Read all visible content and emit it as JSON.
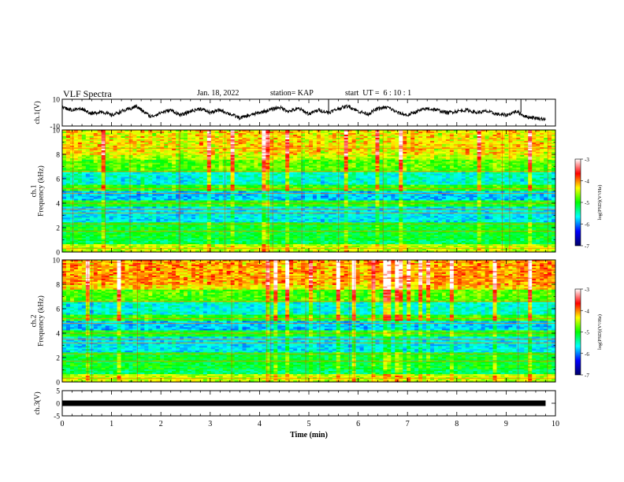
{
  "header": {
    "title": "VLF Spectra",
    "date": "Jan. 18, 2022",
    "station": "station= KAP",
    "start_ut": "start  UT =  6 : 10 : 1"
  },
  "colorbar": {
    "label": "log(PSD)(V²/Hz)",
    "ticks": [
      "-3",
      "-4",
      "-5",
      "-6",
      "-7"
    ],
    "stops": [
      "#ffffff",
      "#ff0000",
      "#ffff00",
      "#00ff00",
      "#00ffff",
      "#0000ff",
      "#000066"
    ]
  },
  "chart_data": [
    {
      "type": "line",
      "ylabel": "ch.1(V)",
      "ylim": [
        -10,
        10
      ],
      "yticks": [
        "10",
        "-10"
      ],
      "xlim": [
        0,
        10
      ],
      "description_series": "waveform",
      "x": [
        0,
        0.2,
        0.4,
        0.6,
        0.8,
        1.0,
        1.2,
        1.4,
        1.5,
        1.6,
        1.8,
        2.0,
        2.2,
        2.4,
        2.6,
        2.8,
        3.0,
        3.2,
        3.4,
        3.6,
        3.8,
        4.0,
        4.2,
        4.4,
        4.6,
        4.8,
        5.0,
        5.2,
        5.4,
        5.6,
        5.8,
        6.0,
        6.2,
        6.4,
        6.6,
        6.8,
        7.0,
        7.2,
        7.4,
        7.6,
        7.8,
        8.0,
        8.2,
        8.4,
        8.6,
        8.8,
        9.0,
        9.2,
        9.4,
        9.6,
        9.8
      ],
      "y": [
        4,
        2,
        3,
        -1,
        1,
        -2,
        1,
        3,
        5,
        2,
        -3,
        0,
        2,
        -2,
        1,
        3,
        0,
        2,
        -1,
        -4,
        -2,
        0,
        2,
        4,
        1,
        3,
        -1,
        2,
        0,
        3,
        5,
        1,
        -1,
        3,
        4,
        0,
        -2,
        1,
        3,
        2,
        0,
        1,
        2,
        0,
        1,
        -1,
        -2,
        1,
        -3,
        -4,
        -5
      ]
    },
    {
      "type": "heatmap",
      "ylabel": "ch.1\nFrequency (kHz)",
      "ylim": [
        0,
        10
      ],
      "yticks": [
        "0",
        "2",
        "4",
        "6",
        "8",
        "10"
      ],
      "xlim": [
        0,
        10
      ],
      "zlabel": "log(PSD)(V²/Hz)",
      "zlim": [
        -7,
        -3
      ]
    },
    {
      "type": "heatmap",
      "ylabel": "ch.2\nFrequency (kHz)",
      "ylim": [
        0,
        10
      ],
      "yticks": [
        "0",
        "2",
        "4",
        "6",
        "8",
        "10"
      ],
      "xlim": [
        0,
        10
      ],
      "zlabel": "log(PSD)(V²/Hz)",
      "zlim": [
        -7,
        -3
      ]
    },
    {
      "type": "line",
      "ylabel": "ch.3(V)",
      "ylim": [
        -5,
        5
      ],
      "yticks": [
        "5",
        "0",
        "-5"
      ],
      "xlim": [
        0,
        10
      ],
      "x": [
        0,
        9.8
      ],
      "y": [
        0,
        0
      ]
    }
  ],
  "xaxis": {
    "label": "Time (min)",
    "ticks": [
      "0",
      "1",
      "2",
      "3",
      "4",
      "5",
      "6",
      "7",
      "8",
      "9",
      "10"
    ]
  }
}
